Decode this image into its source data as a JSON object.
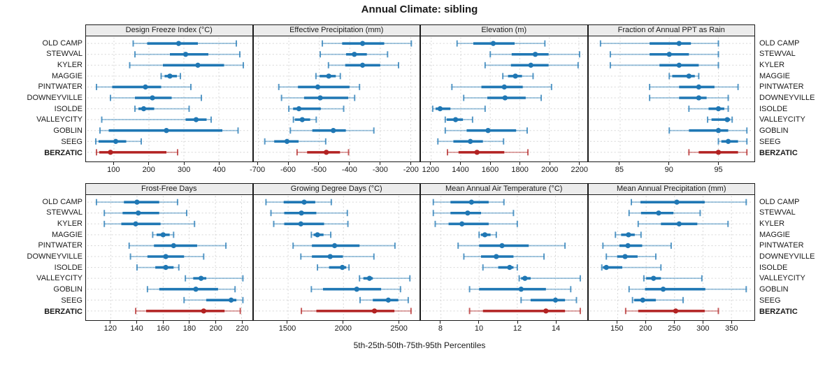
{
  "title": "Annual Climate: sibling",
  "caption": "5th-25th-50th-75th-95th Percentiles",
  "colors": {
    "series": "#1f77b4",
    "highlight": "#b22222",
    "header_bg": "#ececec",
    "grid": "#d6d6d6",
    "border": "#1a1a1a",
    "text": "#1a1a1a"
  },
  "chart_data": {
    "type": "scatter",
    "subtype": "percentile-interval-dotplot",
    "layout": {
      "rows": 2,
      "cols": 4,
      "grid": "dashed",
      "legend": "none"
    },
    "percentiles": [
      "5th",
      "25th",
      "50th",
      "75th",
      "95th"
    ],
    "sites": [
      "OLD CAMP",
      "STEWVAL",
      "KYLER",
      "MAGGIE",
      "PINTWATER",
      "DOWNEYVILLE",
      "ISOLDE",
      "VALLEYCITY",
      "GOBLIN",
      "SEEG",
      "BERZATIC"
    ],
    "highlight_site": "BERZATIC",
    "panels": [
      {
        "title": "Design Freeze Index (°C)",
        "xlim": [
          20,
          495
        ],
        "ticks": [
          100,
          200,
          300,
          400
        ],
        "values": [
          [
            155,
            195,
            285,
            340,
            450
          ],
          [
            160,
            260,
            305,
            370,
            460
          ],
          [
            145,
            240,
            340,
            415,
            470
          ],
          [
            235,
            245,
            260,
            280,
            290
          ],
          [
            50,
            95,
            190,
            235,
            320
          ],
          [
            90,
            160,
            210,
            265,
            350
          ],
          [
            160,
            170,
            185,
            215,
            315
          ],
          [
            65,
            305,
            335,
            365,
            378
          ],
          [
            60,
            85,
            250,
            410,
            455
          ],
          [
            48,
            56,
            105,
            135,
            178
          ],
          [
            50,
            58,
            90,
            250,
            282
          ]
        ]
      },
      {
        "title": "Effective Precipitation (mm)",
        "xlim": [
          -715,
          -170
        ],
        "ticks": [
          -700,
          -600,
          -500,
          -400,
          -300,
          -200
        ],
        "values": [
          [
            -490,
            -425,
            -358,
            -287,
            -198
          ],
          [
            -497,
            -412,
            -385,
            -344,
            -276
          ],
          [
            -470,
            -415,
            -358,
            -300,
            -240
          ],
          [
            -511,
            -499,
            -469,
            -446,
            -431
          ],
          [
            -633,
            -570,
            -505,
            -401,
            -368
          ],
          [
            -624,
            -550,
            -497,
            -405,
            -384
          ],
          [
            -600,
            -586,
            -567,
            -495,
            -420
          ],
          [
            -585,
            -580,
            -556,
            -530,
            -510
          ],
          [
            -595,
            -523,
            -454,
            -413,
            -321
          ],
          [
            -679,
            -648,
            -606,
            -568,
            -479
          ],
          [
            -573,
            -540,
            -477,
            -432,
            -404
          ]
        ]
      },
      {
        "title": "Elevation (m)",
        "xlim": [
          1130,
          2255
        ],
        "ticks": [
          1200,
          1400,
          1600,
          1800,
          2000,
          2200
        ],
        "values": [
          [
            1375,
            1485,
            1620,
            1765,
            1970
          ],
          [
            1600,
            1745,
            1905,
            1995,
            2205
          ],
          [
            1565,
            1740,
            1875,
            1995,
            2195
          ],
          [
            1685,
            1720,
            1770,
            1815,
            1890
          ],
          [
            1340,
            1540,
            1695,
            1820,
            2015
          ],
          [
            1420,
            1580,
            1700,
            1840,
            1945
          ],
          [
            1210,
            1230,
            1260,
            1330,
            1565
          ],
          [
            1295,
            1305,
            1365,
            1415,
            1480
          ],
          [
            1295,
            1440,
            1585,
            1775,
            1850
          ],
          [
            1245,
            1350,
            1465,
            1550,
            1690
          ],
          [
            1310,
            1385,
            1510,
            1695,
            1855
          ]
        ]
      },
      {
        "title": "Fraction of Annual PPT as Rain",
        "xlim": [
          81.8,
          98.7
        ],
        "ticks": [
          85,
          90,
          95
        ],
        "values": [
          [
            83,
            88,
            91,
            92.2,
            95
          ],
          [
            84,
            88,
            90,
            92,
            95
          ],
          [
            84,
            89,
            91,
            93,
            95
          ],
          [
            90,
            90.3,
            92,
            92.6,
            93
          ],
          [
            88,
            91,
            93,
            94.6,
            97
          ],
          [
            88,
            91,
            93,
            93.8,
            96
          ],
          [
            92,
            94,
            95,
            95.6,
            96
          ],
          [
            93.9,
            94.3,
            95.9,
            96.2,
            96.4
          ],
          [
            90,
            92,
            95,
            96,
            97.9
          ],
          [
            95,
            95.3,
            96,
            97,
            97.9
          ],
          [
            92,
            93,
            95,
            97,
            97.9
          ]
        ]
      },
      {
        "title": "Frost-Free Days",
        "xlim": [
          101,
          228
        ],
        "ticks": [
          120,
          140,
          160,
          180,
          200,
          220
        ],
        "values": [
          [
            109,
            130,
            140,
            157,
            171
          ],
          [
            115,
            129,
            141,
            157,
            178
          ],
          [
            115,
            128,
            139,
            158,
            184
          ],
          [
            152,
            155,
            160,
            165,
            168
          ],
          [
            134,
            153,
            168,
            186,
            208
          ],
          [
            135,
            148,
            162,
            176,
            191
          ],
          [
            140,
            154,
            162,
            168,
            172
          ],
          [
            177,
            183,
            189,
            193,
            221
          ],
          [
            148,
            157,
            185,
            202,
            215
          ],
          [
            176,
            193,
            212,
            216,
            221
          ],
          [
            139,
            147,
            191,
            207,
            219
          ]
        ]
      },
      {
        "title": "Growing Degree Days (°C)",
        "xlim": [
          1190,
          2690
        ],
        "ticks": [
          1500,
          2000,
          2500
        ],
        "values": [
          [
            1300,
            1460,
            1645,
            1745,
            1890
          ],
          [
            1345,
            1465,
            1620,
            1755,
            2035
          ],
          [
            1370,
            1465,
            1615,
            1825,
            2040
          ],
          [
            1710,
            1730,
            1765,
            1820,
            1885
          ],
          [
            1545,
            1715,
            1920,
            2145,
            2465
          ],
          [
            1615,
            1715,
            1880,
            1995,
            2275
          ],
          [
            1765,
            1870,
            1990,
            2025,
            2050
          ],
          [
            2145,
            2180,
            2235,
            2265,
            2600
          ],
          [
            1710,
            1815,
            2120,
            2340,
            2515
          ],
          [
            2150,
            2265,
            2405,
            2495,
            2585
          ],
          [
            1620,
            1755,
            2280,
            2460,
            2610
          ]
        ]
      },
      {
        "title": "Mean Annual Air Temperature (°C)",
        "xlim": [
          6.95,
          15.65
        ],
        "ticks": [
          8,
          10,
          12,
          14
        ],
        "values": [
          [
            7.6,
            8.5,
            9.6,
            10.5,
            11.3
          ],
          [
            7.6,
            8.5,
            9.4,
            10.1,
            11.8
          ],
          [
            7.7,
            8.4,
            9.1,
            10.5,
            12.0
          ],
          [
            10.0,
            10.1,
            10.3,
            10.6,
            10.9
          ],
          [
            8.9,
            10.0,
            11.2,
            12.6,
            14.5
          ],
          [
            9.2,
            10.1,
            10.9,
            11.8,
            13.4
          ],
          [
            10.2,
            11.0,
            11.6,
            11.8,
            12.0
          ],
          [
            12.1,
            12.2,
            12.4,
            12.7,
            15.3
          ],
          [
            9.5,
            10.0,
            12.2,
            13.5,
            14.8
          ],
          [
            12.2,
            12.7,
            14.0,
            14.5,
            15.1
          ],
          [
            9.5,
            10.2,
            13.5,
            14.5,
            15.3
          ]
        ]
      },
      {
        "title": "Mean Annual Precipitation (mm)",
        "xlim": [
          99,
          391
        ],
        "ticks": [
          150,
          200,
          250,
          300,
          350
        ],
        "values": [
          [
            174,
            190,
            254,
            303,
            376
          ],
          [
            170,
            191,
            222,
            248,
            295
          ],
          [
            186,
            226,
            258,
            290,
            344
          ],
          [
            146,
            156,
            169,
            180,
            191
          ],
          [
            124,
            153,
            168,
            193,
            244
          ],
          [
            130,
            149,
            163,
            185,
            217
          ],
          [
            122,
            124,
            130,
            158,
            226
          ],
          [
            196,
            200,
            213,
            226,
            298
          ],
          [
            170,
            198,
            230,
            304,
            376
          ],
          [
            176,
            179,
            194,
            217,
            265
          ],
          [
            164,
            186,
            252,
            303,
            327
          ]
        ]
      }
    ]
  }
}
